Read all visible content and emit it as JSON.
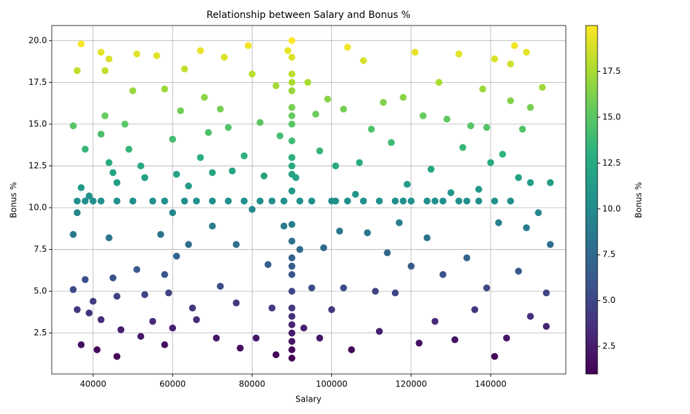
{
  "chart_data": {
    "type": "scatter",
    "title": "Relationship between Salary and Bonus %",
    "x_label": "Salary",
    "y_label": "Bonus %",
    "grid": true,
    "colormap": "viridis",
    "xlim": [
      29600,
      158900
    ],
    "ylim": [
      0.05,
      20.9
    ],
    "xticks": [
      40000,
      60000,
      80000,
      100000,
      120000,
      140000
    ],
    "yticks": [
      2.5,
      {
        "value": 5,
        "label": "5.0"
      },
      7.5,
      {
        "value": 10,
        "label": "10.0"
      },
      12.5,
      {
        "value": 15,
        "label": "15.0"
      },
      17.5,
      {
        "value": 20,
        "label": "20.0"
      }
    ],
    "colorbar": {
      "label": "Bonus %",
      "lim": [
        1,
        20
      ],
      "ticks": [
        2.5,
        {
          "value": 5,
          "label": "5.0"
        },
        7.5,
        {
          "value": 10,
          "label": "10.0"
        },
        12.5,
        {
          "value": 15,
          "label": "15.0"
        },
        17.5
      ]
    },
    "x": [
      35000,
      36000,
      37000,
      37000,
      36000,
      38000,
      39000,
      35000,
      35000,
      36000,
      38000,
      39000,
      37000,
      40000,
      41000,
      42000,
      42000,
      43000,
      44000,
      43000,
      42000,
      44000,
      45000,
      46000,
      44000,
      45000,
      46000,
      47000,
      46000,
      48000,
      49000,
      50000,
      51000,
      52000,
      53000,
      51000,
      53000,
      52000,
      55000,
      56000,
      58000,
      57000,
      58000,
      59000,
      58000,
      60000,
      61000,
      60000,
      61000,
      60000,
      62000,
      63000,
      64000,
      64000,
      65000,
      66000,
      67000,
      67000,
      68000,
      69000,
      70000,
      70000,
      71000,
      72000,
      72000,
      73000,
      74000,
      75000,
      76000,
      76000,
      77000,
      78000,
      79000,
      80000,
      80000,
      81000,
      82000,
      83000,
      84000,
      85000,
      86000,
      86000,
      87000,
      88000,
      89000,
      91000,
      92000,
      93000,
      94000,
      95000,
      96000,
      97000,
      97000,
      98000,
      99000,
      100000,
      101000,
      102000,
      103000,
      103000,
      104000,
      105000,
      106000,
      107000,
      108000,
      109000,
      110000,
      111000,
      112000,
      113000,
      114000,
      115000,
      116000,
      117000,
      118000,
      119000,
      120000,
      121000,
      122000,
      123000,
      124000,
      125000,
      126000,
      127000,
      128000,
      129000,
      130000,
      131000,
      132000,
      133000,
      134000,
      135000,
      136000,
      137000,
      138000,
      139000,
      140000,
      141000,
      141000,
      142000,
      143000,
      144000,
      145000,
      146000,
      147000,
      147000,
      148000,
      149000,
      149000,
      150000,
      150000,
      152000,
      153000,
      154000,
      155000,
      155000,
      154000,
      150000,
      145000,
      139000,
      36000,
      38000,
      40000,
      42000,
      46000,
      50000,
      55000,
      58000,
      63000,
      66000,
      70000,
      74000,
      78000,
      82000,
      85000,
      88000,
      92000,
      95000,
      100000,
      104000,
      108000,
      112000,
      116000,
      120000,
      124000,
      128000,
      132000,
      137000,
      141000,
      145000,
      90000,
      90000,
      90000,
      90000,
      90000,
      90000,
      90000,
      90000,
      90000,
      90000,
      90000,
      90000,
      90000,
      90000,
      90000,
      90000,
      90000,
      90000,
      90000,
      90000,
      90000,
      90000,
      90000,
      90000,
      90000,
      90000,
      101000,
      118000,
      126000,
      134000
    ],
    "values": [
      14.9,
      18.2,
      19.8,
      11.2,
      9.7,
      13.5,
      10.7,
      8.4,
      5.1,
      3.9,
      5.7,
      3.7,
      1.8,
      4.4,
      1.5,
      3.3,
      19.3,
      18.2,
      18.9,
      15.5,
      14.4,
      12.7,
      12.1,
      11.5,
      8.2,
      5.8,
      4.7,
      2.7,
      1.1,
      15.0,
      13.5,
      17.0,
      19.2,
      12.5,
      11.8,
      6.3,
      4.8,
      2.3,
      3.2,
      19.1,
      17.1,
      8.4,
      6.0,
      4.9,
      1.8,
      14.1,
      12.0,
      9.7,
      7.1,
      2.8,
      15.8,
      18.3,
      11.3,
      7.8,
      4.0,
      3.3,
      19.4,
      13.0,
      16.6,
      14.5,
      12.1,
      8.9,
      2.2,
      5.3,
      15.9,
      19.0,
      14.8,
      12.2,
      7.8,
      4.3,
      1.6,
      13.1,
      19.7,
      18.0,
      9.9,
      2.2,
      15.1,
      11.9,
      6.6,
      4.0,
      1.2,
      17.3,
      14.3,
      8.9,
      19.4,
      11.8,
      7.5,
      2.8,
      17.5,
      5.2,
      15.6,
      13.4,
      2.2,
      7.6,
      16.5,
      3.9,
      12.5,
      8.6,
      5.2,
      15.9,
      19.6,
      1.5,
      10.8,
      12.7,
      18.8,
      8.5,
      14.7,
      5.0,
      2.6,
      16.3,
      7.3,
      13.9,
      4.9,
      9.1,
      16.6,
      11.4,
      6.5,
      19.3,
      1.9,
      15.5,
      8.2,
      12.3,
      3.2,
      17.5,
      6.0,
      15.3,
      10.9,
      2.1,
      19.2,
      13.6,
      7.0,
      14.9,
      3.9,
      11.1,
      17.1,
      5.2,
      12.7,
      18.9,
      1.1,
      9.1,
      13.2,
      2.2,
      16.4,
      19.7,
      11.8,
      6.2,
      14.7,
      19.3,
      8.8,
      3.5,
      11.5,
      9.7,
      17.2,
      2.9,
      11.5,
      7.8,
      4.9,
      16.0,
      18.6,
      14.8,
      10.4,
      10.4,
      10.4,
      10.4,
      10.4,
      10.4,
      10.4,
      10.4,
      10.4,
      10.4,
      10.4,
      10.4,
      10.4,
      10.4,
      10.4,
      10.4,
      10.4,
      10.4,
      10.4,
      10.4,
      10.4,
      10.4,
      10.4,
      10.4,
      10.4,
      10.4,
      10.4,
      10.4,
      10.4,
      10.4,
      1.0,
      1.5,
      2.0,
      2.5,
      3.0,
      4.0,
      5.0,
      6.0,
      7.0,
      8.0,
      9.0,
      11.0,
      12.0,
      13.0,
      14.0,
      15.0,
      16.0,
      17.0,
      18.0,
      19.0,
      20.0,
      12.5,
      3.5,
      6.5,
      15.5,
      17.5,
      10.4,
      10.4,
      10.4,
      10.4
    ]
  }
}
